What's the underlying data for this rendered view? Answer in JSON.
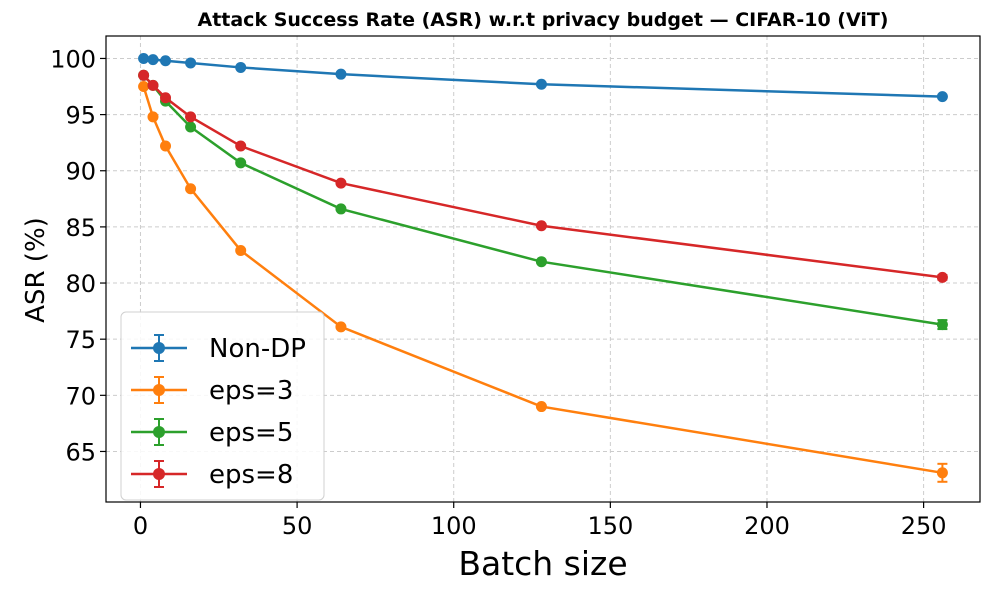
{
  "chart_data": {
    "type": "line",
    "title": "Attack Success Rate (ASR) w.r.t privacy budget — CIFAR-10 (ViT)",
    "xlabel": "Batch size",
    "ylabel": "ASR (%)",
    "xlim": [
      -11,
      268
    ],
    "ylim": [
      60.5,
      102
    ],
    "xticks": [
      0,
      50,
      100,
      150,
      200,
      250
    ],
    "yticks": [
      65,
      70,
      75,
      80,
      85,
      90,
      95,
      100
    ],
    "grid": true,
    "legend_position": "lower-left",
    "error_bars": true,
    "series": [
      {
        "name": "Non-DP",
        "color": "#1f77b4",
        "x": [
          1,
          4,
          8,
          16,
          32,
          64,
          128,
          256
        ],
        "y": [
          100.0,
          99.9,
          99.8,
          99.6,
          99.2,
          98.6,
          97.7,
          96.6
        ],
        "err": [
          0.05,
          0.05,
          0.05,
          0.05,
          0.05,
          0.05,
          0.05,
          0.1
        ]
      },
      {
        "name": "eps=3",
        "color": "#ff7f0e",
        "x": [
          1,
          4,
          8,
          16,
          32,
          64,
          128,
          256
        ],
        "y": [
          97.5,
          94.8,
          92.2,
          88.4,
          82.9,
          76.1,
          69.0,
          63.1
        ],
        "err": [
          0.1,
          0.1,
          0.1,
          0.1,
          0.1,
          0.1,
          0.1,
          0.8
        ]
      },
      {
        "name": "eps=5",
        "color": "#2ca02c",
        "x": [
          1,
          4,
          8,
          16,
          32,
          64,
          128,
          256
        ],
        "y": [
          98.5,
          97.6,
          96.2,
          93.9,
          90.7,
          86.6,
          81.9,
          76.3
        ],
        "err": [
          0.1,
          0.1,
          0.1,
          0.1,
          0.1,
          0.1,
          0.1,
          0.4
        ]
      },
      {
        "name": "eps=8",
        "color": "#d62728",
        "x": [
          1,
          4,
          8,
          16,
          32,
          64,
          128,
          256
        ],
        "y": [
          98.5,
          97.6,
          96.5,
          94.8,
          92.2,
          88.9,
          85.1,
          80.5
        ],
        "err": [
          0.1,
          0.1,
          0.1,
          0.1,
          0.1,
          0.1,
          0.1,
          0.2
        ]
      }
    ]
  }
}
